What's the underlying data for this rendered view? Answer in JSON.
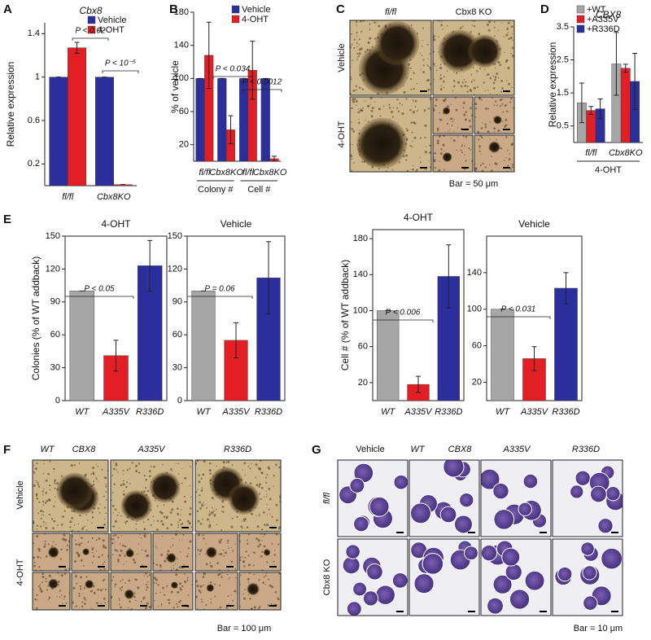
{
  "panel_letters": [
    "A",
    "B",
    "C",
    "D",
    "E",
    "F",
    "G"
  ],
  "chart_data": [
    {
      "type": "bar",
      "title": "Cbx8",
      "y_label": "Relative expression",
      "categories": [
        "fl/fl",
        "Cbx8KO"
      ],
      "series": [
        {
          "name": "Vehicle",
          "color": "#2b2f9c",
          "values": [
            1.0,
            1.0
          ],
          "errors": [
            0,
            0
          ]
        },
        {
          "name": "4-OHT",
          "color": "#e31e24",
          "values": [
            1.27,
            0.01
          ],
          "errors": [
            0.05,
            0
          ]
        }
      ],
      "ylim": [
        0,
        1.5
      ],
      "yticks": [
        0.2,
        0.6,
        1.0,
        1.4
      ],
      "legend": "upper right",
      "annotations": [
        "P < 0.02",
        "P < 10⁻⁵"
      ]
    },
    {
      "type": "bar",
      "y_label": "% of vehicle",
      "categories": [
        "fl/fl",
        "Cbx8KO",
        "fl/fl",
        "Cbx8KO"
      ],
      "group_labels": [
        "Colony #",
        "Cell #"
      ],
      "series": [
        {
          "name": "Vehicle",
          "color": "#2b2f9c",
          "values": [
            100,
            100,
            100,
            100
          ],
          "errors": [
            0,
            0,
            0,
            0
          ]
        },
        {
          "name": "4-OHT",
          "color": "#e31e24",
          "values": [
            128,
            38,
            110,
            3
          ],
          "errors": [
            40,
            17,
            35,
            3
          ]
        }
      ],
      "ylim": [
        0,
        180
      ],
      "yticks": [
        20,
        60,
        100,
        140,
        180
      ],
      "legend": "upper right",
      "annotations": [
        "P < 0.034",
        "P < 0.0012"
      ]
    },
    {
      "type": "bar",
      "title": "CBX8",
      "y_label": "Relative expression",
      "categories": [
        "fl/fl",
        "Cbx8KO"
      ],
      "group_labels": [
        "4-OHT"
      ],
      "series": [
        {
          "name": "+WT",
          "color": "#a6a6a6",
          "values": [
            1.2,
            2.38
          ],
          "errors": [
            0.6,
            0.95
          ]
        },
        {
          "name": "+A335V",
          "color": "#e31e24",
          "values": [
            0.97,
            2.25
          ],
          "errors": [
            0.12,
            0.12
          ]
        },
        {
          "name": "+R336D",
          "color": "#2b2f9c",
          "values": [
            1.02,
            1.85
          ],
          "errors": [
            0.3,
            0.85
          ]
        }
      ],
      "ylim": [
        0,
        3.5
      ],
      "yticks": [
        0.5,
        1.5,
        2.5,
        3.5
      ],
      "legend": "upper left"
    },
    {
      "type": "bar",
      "title": "4-OHT",
      "y_label": "Colonies (% of WT addback)",
      "categories": [
        "WT",
        "A335V",
        "R336D"
      ],
      "colors": [
        "#a6a6a6",
        "#e31e24",
        "#2b2f9c"
      ],
      "values": [
        100,
        41,
        123
      ],
      "errors": [
        0,
        14,
        23
      ],
      "ylim": [
        0,
        150
      ],
      "yticks": [
        0,
        30,
        60,
        90,
        120,
        150
      ],
      "annotations": [
        "P < 0.05"
      ]
    },
    {
      "type": "bar",
      "title": "Vehicle",
      "categories": [
        "WT",
        "A335V",
        "R336D"
      ],
      "colors": [
        "#a6a6a6",
        "#e31e24",
        "#2b2f9c"
      ],
      "values": [
        100,
        55,
        112
      ],
      "errors": [
        0,
        16,
        33
      ],
      "ylim": [
        0,
        150
      ],
      "yticks": [
        0,
        30,
        60,
        90,
        120,
        150
      ],
      "annotations": [
        "P = 0.06"
      ]
    },
    {
      "type": "bar",
      "title": "4-OHT",
      "y_label": "Cell # (% of WT addback)",
      "categories": [
        "WT",
        "A335V",
        "R336D"
      ],
      "colors": [
        "#a6a6a6",
        "#e31e24",
        "#2b2f9c"
      ],
      "values": [
        100,
        18,
        138
      ],
      "errors": [
        0,
        9,
        35
      ],
      "ylim": [
        0,
        190
      ],
      "yticks": [
        20,
        60,
        100,
        140,
        180
      ],
      "annotations": [
        "P < 0.006"
      ]
    },
    {
      "type": "bar",
      "title": "Vehicle",
      "categories": [
        "WT",
        "A335V",
        "R336D"
      ],
      "colors": [
        "#a6a6a6",
        "#e31e24",
        "#2b2f9c"
      ],
      "values": [
        100,
        46,
        123
      ],
      "errors": [
        0,
        13,
        17
      ],
      "ylim": [
        0,
        180
      ],
      "yticks": [
        20,
        60,
        100,
        140
      ],
      "annotations": [
        "P < 0.031"
      ]
    }
  ],
  "image_panels": {
    "C": {
      "columns": [
        "fl/fl",
        "Cbx8 KO"
      ],
      "rows": [
        "Vehicle",
        "4-OHT"
      ],
      "scale": "Bar = 50 μm"
    },
    "F": {
      "columns": [
        "WT",
        "CBX8",
        "A335V",
        "R336D"
      ],
      "rows": [
        "Vehicle",
        "4-OHT"
      ],
      "scale": "Bar = 100 μm"
    },
    "G": {
      "columns": [
        "Vehicle",
        "WT",
        "CBX8",
        "A335V",
        "R336D"
      ],
      "rows": [
        "fl/fl",
        "Cbx8 KO"
      ],
      "scale": "Bar = 10 μm"
    }
  }
}
